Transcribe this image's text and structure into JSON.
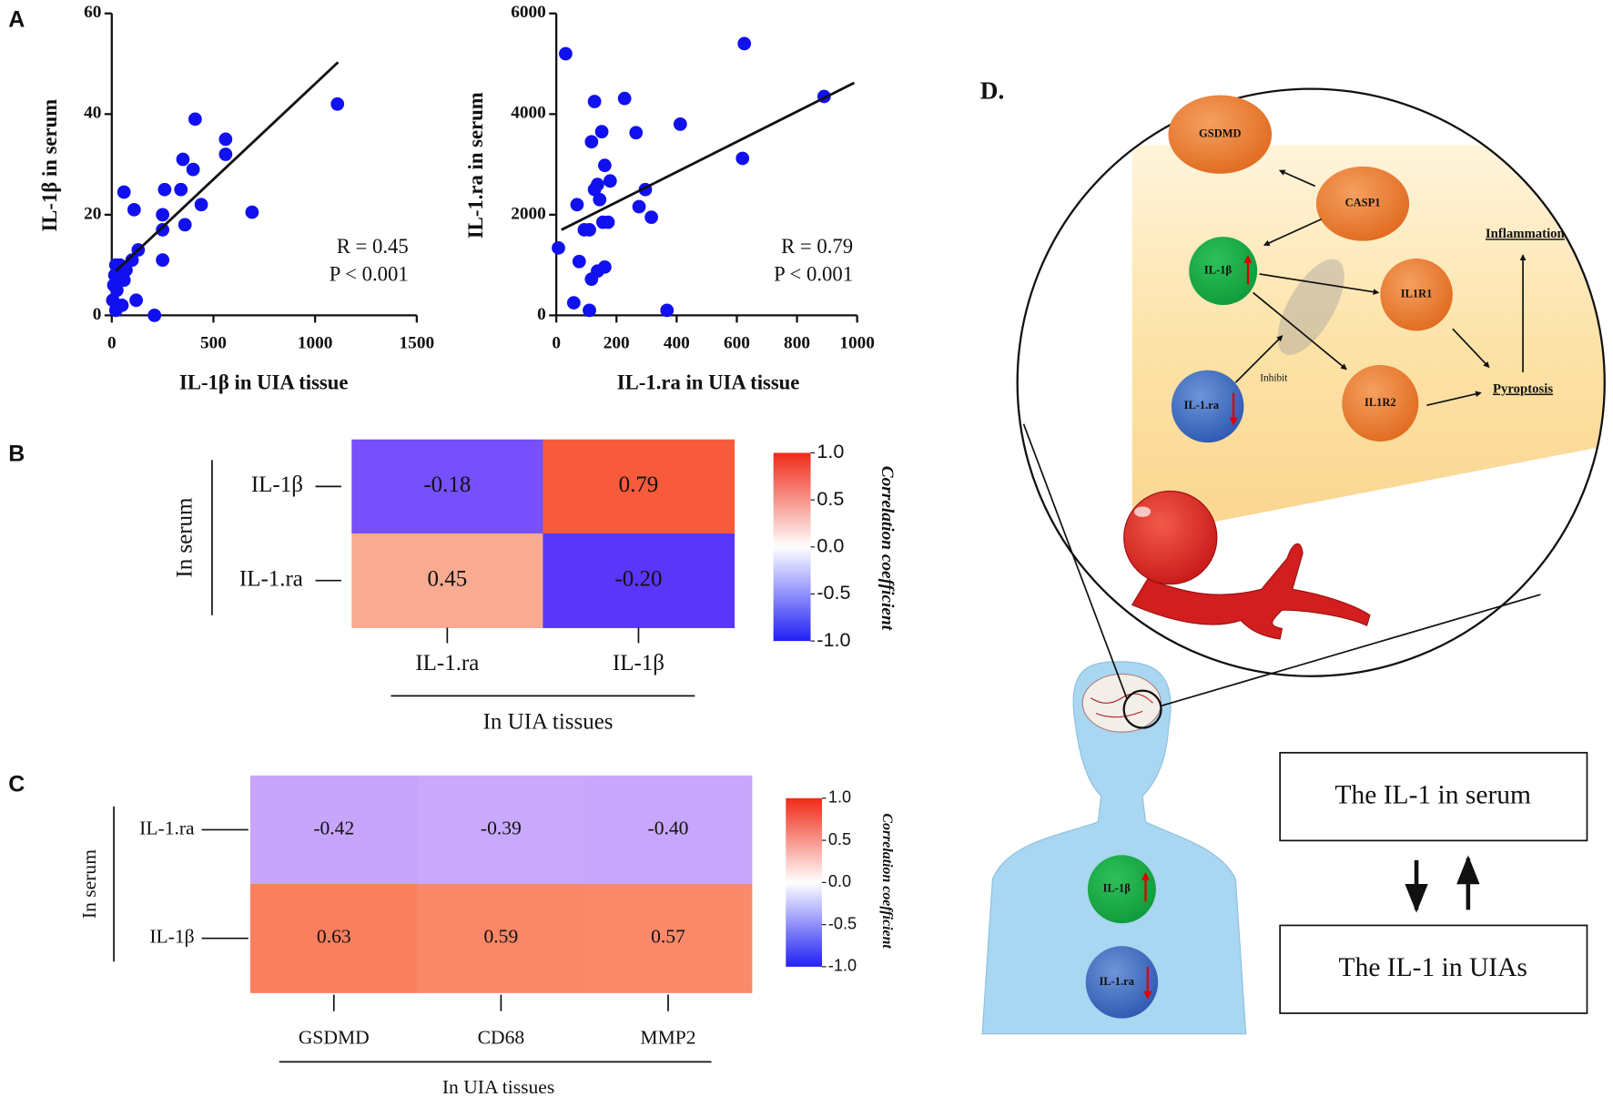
{
  "chart_data": [
    {
      "type": "scatter",
      "panel_label": "A",
      "xlabel": "IL-1β in UIA tissue",
      "ylabel": "IL-1β in serum",
      "color": "#1010f0",
      "x": [
        5,
        10,
        15,
        20,
        25,
        30,
        40,
        50,
        60,
        70,
        20,
        60,
        110,
        130,
        100,
        120,
        210,
        250,
        250,
        250,
        260,
        340,
        350,
        360,
        400,
        410,
        440,
        560,
        560,
        690,
        1110
      ],
      "y": [
        3,
        6,
        8,
        10,
        5,
        9,
        10,
        2,
        7,
        9,
        1,
        24.5,
        21,
        13,
        11,
        3,
        0,
        11,
        17,
        20,
        25,
        25,
        31,
        18,
        29,
        39,
        22,
        32,
        35,
        20.5,
        42
      ],
      "fit_line": {
        "x": [
          20,
          1113
        ],
        "y": [
          8.8,
          50.3
        ]
      },
      "xlim": [
        0,
        1500
      ],
      "xticks": [
        0,
        500,
        1000,
        1500
      ],
      "ylim": [
        0,
        60
      ],
      "yticks": [
        0,
        20,
        40,
        60
      ],
      "annotations": [
        "R = 0.45",
        "P < 0.001"
      ]
    },
    {
      "type": "scatter",
      "xlabel": "IL-1.ra in UIA tissue",
      "ylabel": "IL-1.ra in serum",
      "color": "#1010f0",
      "x": [
        31,
        7,
        69,
        76,
        58,
        93,
        110,
        117,
        127,
        137,
        127,
        117,
        110,
        151,
        161,
        144,
        155,
        137,
        161,
        179,
        227,
        265,
        275,
        296,
        316,
        368,
        412,
        625,
        619,
        890,
        172
      ],
      "y": [
        5200,
        1340,
        2200,
        1070,
        250,
        1700,
        1700,
        720,
        2500,
        2600,
        4250,
        3450,
        100,
        3650,
        2980,
        2300,
        1850,
        880,
        960,
        2670,
        4310,
        3630,
        2160,
        2500,
        1950,
        100,
        3800,
        5400,
        3120,
        4350,
        1850
      ],
      "fit_line": {
        "x": [
          17,
          990
        ],
        "y": [
          1700,
          4620
        ]
      },
      "xlim": [
        0,
        1000
      ],
      "xticks": [
        0,
        200,
        400,
        600,
        800,
        1000
      ],
      "ylim": [
        0,
        6000
      ],
      "yticks": [
        0,
        2000,
        4000,
        6000
      ],
      "annotations": [
        "R = 0.79",
        "P < 0.001"
      ]
    },
    {
      "type": "heatmap",
      "panel_label": "B",
      "rows": [
        "IL-1β",
        "IL-1.ra"
      ],
      "columns": [
        "IL-1.ra",
        "IL-1β"
      ],
      "values": [
        [
          -0.18,
          0.79
        ],
        [
          0.45,
          -0.2
        ]
      ],
      "value_labels": [
        [
          "-0.18",
          "0.79"
        ],
        [
          "0.45",
          "-0.20"
        ]
      ],
      "colors": [
        [
          "#7650fb",
          "#f85a3c"
        ],
        [
          "#f9ab92",
          "#5a36fb"
        ]
      ],
      "ylabel": "In serum",
      "xlabel": "In UIA tissues",
      "colorbar_label": "Correlation coefficient",
      "colorscale": [
        "#2020f5",
        "#ffffff",
        "#f02a18"
      ],
      "clim": [
        -1,
        1
      ],
      "cticks": [
        {
          "value": 1,
          "label": "1.0"
        },
        0.5,
        {
          "value": 0,
          "label": "0.0"
        },
        -0.5,
        {
          "value": -1,
          "label": "-1.0"
        }
      ]
    },
    {
      "type": "heatmap",
      "panel_label": "C",
      "rows": [
        "IL-1.ra",
        "IL-1β"
      ],
      "columns": [
        "GSDMD",
        "CD68",
        "MMP2"
      ],
      "values": [
        [
          -0.42,
          -0.39,
          -0.4
        ],
        [
          0.63,
          0.59,
          0.57
        ]
      ],
      "value_labels": [
        [
          "-0.42",
          "-0.39",
          "-0.40"
        ],
        [
          "0.63",
          "0.59",
          "0.57"
        ]
      ],
      "colors": [
        [
          "#c6a5fb",
          "#c8a9fb",
          "#c7a7fb"
        ],
        [
          "#fa7f5e",
          "#fa8767",
          "#fb8a6a"
        ]
      ],
      "ylabel": "In serum",
      "xlabel": "In UIA tissues",
      "colorbar_label": "Correlation coefficient",
      "colorscale": [
        "#2020f5",
        "#ffffff",
        "#f02a18"
      ],
      "clim": [
        -1,
        1
      ],
      "cticks": [
        {
          "value": 1,
          "label": "1.0"
        },
        0.5,
        {
          "value": 0,
          "label": "0.0"
        },
        -0.5,
        {
          "value": -1,
          "label": "-1.0"
        }
      ]
    }
  ],
  "diagram": {
    "label": "D.",
    "nodes": [
      "GSDMD",
      "CASP1",
      "IL-1β",
      "IL1R1",
      "IL-1.ra",
      "IL1R2"
    ],
    "inhibit": "Inhibit",
    "outcomes": [
      "Inflammation",
      "Pyroptosis"
    ],
    "body_nodes": [
      "IL-1β",
      "IL-1.ra"
    ],
    "boxes": [
      "The IL-1 in serum",
      "The IL-1 in UIAs"
    ]
  }
}
